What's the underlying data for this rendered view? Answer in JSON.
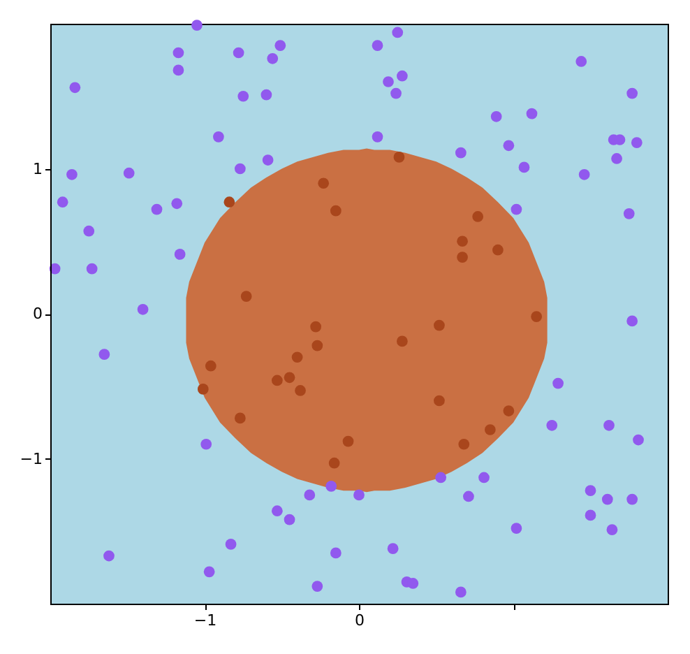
{
  "chart_data": {
    "type": "scatter",
    "xlim": [
      -2.0,
      2.0
    ],
    "ylim": [
      -2.0,
      2.0
    ],
    "xticks": [
      -1,
      0,
      {
        "value": 1,
        "label": null
      }
    ],
    "yticks": [
      -1,
      0,
      1
    ],
    "grid": false,
    "marker": "circle",
    "series": [
      {
        "type": "area",
        "marker": "none",
        "color": "#ca7043",
        "x": [
          -1.12,
          -1.1,
          -1.0,
          -0.9,
          -0.8,
          -0.7,
          -0.6,
          -0.5,
          -0.4,
          -0.3,
          -0.2,
          -0.1,
          0.0,
          0.05,
          0.1,
          0.2,
          0.3,
          0.4,
          0.5,
          0.6,
          0.7,
          0.8,
          0.9,
          1.0,
          1.1,
          1.2,
          1.22
        ],
        "values": [
          0.11,
          0.22,
          0.49,
          0.66,
          0.77,
          0.87,
          0.94,
          1.0,
          1.05,
          1.08,
          1.11,
          1.13,
          1.13,
          1.14,
          1.13,
          1.13,
          1.11,
          1.08,
          1.05,
          1.0,
          0.94,
          0.87,
          0.77,
          0.66,
          0.49,
          0.22,
          0.11
        ]
      },
      {
        "type": "area",
        "marker": "none",
        "color": "#ca7043",
        "x": [
          -1.12,
          -1.1,
          -1.0,
          -0.9,
          -0.8,
          -0.7,
          -0.6,
          -0.5,
          -0.4,
          -0.3,
          -0.2,
          -0.1,
          0.0,
          0.05,
          0.1,
          0.2,
          0.3,
          0.4,
          0.5,
          0.6,
          0.7,
          0.8,
          0.9,
          1.0,
          1.1,
          1.2,
          1.22
        ],
        "values": [
          -0.2,
          -0.31,
          -0.58,
          -0.75,
          -0.86,
          -0.96,
          -1.03,
          -1.09,
          -1.14,
          -1.17,
          -1.2,
          -1.22,
          -1.22,
          -1.23,
          -1.22,
          -1.22,
          -1.2,
          -1.17,
          -1.14,
          -1.09,
          -1.03,
          -0.96,
          -0.86,
          -0.75,
          -0.58,
          -0.31,
          -0.2
        ]
      },
      {
        "color": "#9159ee",
        "x": [
          -1.05,
          -1.17,
          -0.78,
          -1.17,
          -1.84,
          -0.75,
          -0.91,
          -1.86,
          -1.49,
          -0.77,
          -1.92,
          -1.31,
          -1.18,
          -1.75,
          -1.16,
          -1.97,
          -1.73,
          -1.4,
          0.25,
          -0.51,
          0.12,
          -0.56,
          0.19,
          0.28,
          0.24,
          -0.6,
          0.12,
          -0.59,
          0.66,
          1.44,
          1.77,
          0.89,
          1.12,
          0.97,
          1.65,
          1.69,
          1.8,
          1.67,
          1.07,
          1.46,
          1.02,
          1.75,
          -1.65,
          -0.99,
          -0.83,
          -1.62,
          -0.97,
          -0.18,
          -0.32,
          0.0,
          0.53,
          -0.53,
          -0.45,
          -0.15,
          0.22,
          -0.27,
          0.31,
          0.35,
          0.66,
          1.77,
          1.29,
          1.25,
          1.62,
          1.81,
          0.81,
          0.71,
          1.5,
          1.61,
          1.77,
          1.5,
          1.64,
          1.02
        ],
        "values": [
          1.99,
          1.8,
          1.8,
          1.68,
          1.56,
          1.5,
          1.22,
          0.96,
          0.97,
          1.0,
          0.77,
          0.72,
          0.76,
          0.57,
          0.41,
          0.31,
          0.31,
          0.03,
          1.94,
          1.85,
          1.85,
          1.76,
          1.6,
          1.64,
          1.52,
          1.51,
          1.22,
          1.06,
          1.11,
          1.74,
          1.52,
          1.36,
          1.38,
          1.16,
          1.2,
          1.2,
          1.18,
          1.07,
          1.01,
          0.96,
          0.72,
          0.69,
          -0.28,
          -0.9,
          -1.59,
          -1.67,
          -1.78,
          -1.19,
          -1.25,
          -1.25,
          -1.13,
          -1.36,
          -1.42,
          -1.65,
          -1.62,
          -1.88,
          -1.85,
          -1.86,
          -1.92,
          -0.05,
          -0.48,
          -0.77,
          -0.77,
          -0.87,
          -1.13,
          -1.26,
          -1.22,
          -1.28,
          -1.28,
          -1.39,
          -1.49,
          -1.48
        ]
      },
      {
        "color": "#a9461c",
        "x": [
          -0.84,
          -0.73,
          -0.23,
          -0.15,
          0.26,
          0.67,
          0.67,
          0.9,
          0.77,
          1.15,
          0.97,
          0.85,
          0.68,
          0.52,
          0.28,
          0.52,
          -0.28,
          -0.27,
          -0.4,
          -0.53,
          -0.45,
          -0.38,
          -0.07,
          -0.16,
          -0.96,
          -1.01,
          -0.77
        ],
        "values": [
          0.77,
          0.12,
          0.9,
          0.71,
          1.08,
          0.5,
          0.39,
          0.44,
          0.67,
          -0.02,
          -0.67,
          -0.8,
          -0.9,
          -0.08,
          -0.19,
          -0.6,
          -0.09,
          -0.22,
          -0.3,
          -0.46,
          -0.44,
          -0.53,
          -0.88,
          -1.03,
          -0.36,
          -0.52,
          -0.72
        ]
      }
    ]
  }
}
